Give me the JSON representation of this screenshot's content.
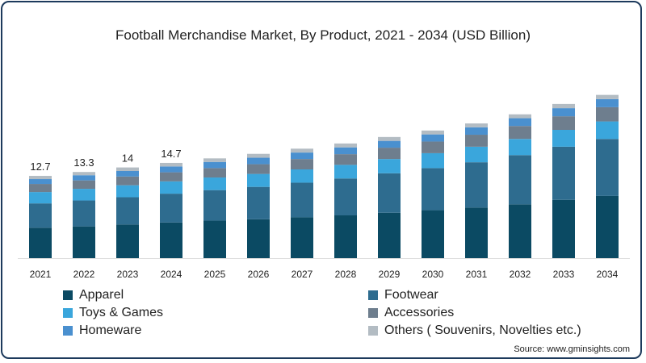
{
  "chart_data": {
    "type": "bar",
    "stacked": true,
    "title": "Football Merchandise Market, By Product, 2021 - 2034 (USD Billion)",
    "xlabel": "",
    "ylabel": "",
    "ylim": [
      0,
      27
    ],
    "grid": false,
    "legend_position": "bottom",
    "categories": [
      "2021",
      "2022",
      "2023",
      "2024",
      "2025",
      "2026",
      "2027",
      "2028",
      "2029",
      "2030",
      "2031",
      "2032",
      "2033",
      "2034"
    ],
    "total_labels": [
      "12.7",
      "13.3",
      "14",
      "14.7",
      "",
      "",
      "",
      "",
      "",
      "",
      "",
      "",
      "",
      ""
    ],
    "series": [
      {
        "name": "Apparel",
        "color": "#0b4a63",
        "values": [
          4.7,
          4.9,
          5.2,
          5.5,
          5.8,
          6.0,
          6.3,
          6.6,
          7.0,
          7.4,
          7.8,
          8.3,
          9.0,
          9.6
        ]
      },
      {
        "name": "Footwear",
        "color": "#2e6c8f",
        "values": [
          3.75,
          4.0,
          4.2,
          4.45,
          4.7,
          5.0,
          5.35,
          5.7,
          6.1,
          6.5,
          7.0,
          7.6,
          8.2,
          8.8
        ]
      },
      {
        "name": "Toys & Games",
        "color": "#3aa6dc",
        "values": [
          1.75,
          1.8,
          1.85,
          1.9,
          1.95,
          2.0,
          2.05,
          2.1,
          2.2,
          2.3,
          2.4,
          2.5,
          2.6,
          2.7
        ]
      },
      {
        "name": "Accessories",
        "color": "#6e7e8e",
        "values": [
          1.25,
          1.3,
          1.35,
          1.4,
          1.45,
          1.5,
          1.6,
          1.65,
          1.75,
          1.8,
          1.85,
          2.0,
          2.1,
          2.2
        ]
      },
      {
        "name": "Homeware",
        "color": "#4a90cf",
        "values": [
          0.75,
          0.8,
          0.85,
          0.9,
          0.95,
          1.0,
          1.0,
          1.05,
          1.05,
          1.1,
          1.15,
          1.2,
          1.25,
          1.25
        ]
      },
      {
        "name": "Others ( Souvenirs, Novelties etc.)",
        "color": "#b3bcc3",
        "values": [
          0.5,
          0.5,
          0.55,
          0.55,
          0.55,
          0.6,
          0.6,
          0.6,
          0.6,
          0.6,
          0.6,
          0.6,
          0.65,
          0.65
        ]
      }
    ]
  },
  "source": "Source: www.gminsights.com"
}
